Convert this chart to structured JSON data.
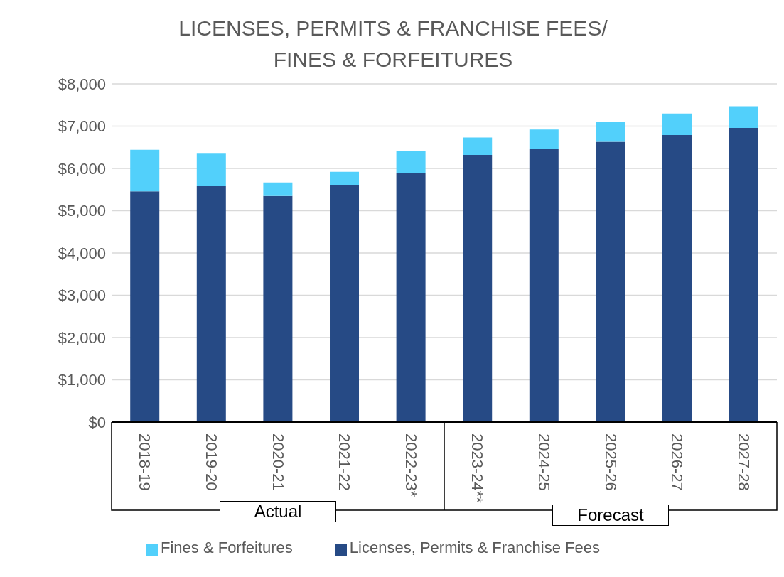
{
  "chart_data": {
    "type": "bar",
    "title": "LICENSES, PERMITS & FRANCHISE FEES/ FINES & FORFEITURES",
    "categories": [
      "2018-19",
      "2019-20",
      "2020-21",
      "2021-22",
      "2022-23*",
      "2023-24**",
      "2024-25",
      "2025-26",
      "2026-27",
      "2027-28"
    ],
    "series": [
      {
        "name": "Licenses, Permits & Franchise Fees",
        "color": "#264a85",
        "values": [
          5460,
          5580,
          5350,
          5610,
          5900,
          6320,
          6470,
          6630,
          6790,
          6960
        ]
      },
      {
        "name": "Fines & Forfeitures",
        "color": "#52d0fb",
        "values": [
          980,
          770,
          320,
          310,
          510,
          410,
          450,
          480,
          510,
          510
        ]
      }
    ],
    "stacked": true,
    "ylim": [
      0,
      8000
    ],
    "yticks": [
      {
        "value": 0,
        "label": "$0"
      },
      {
        "value": 1000,
        "label": "$1,000"
      },
      {
        "value": 2000,
        "label": "$2,000"
      },
      {
        "value": 3000,
        "label": "$3,000"
      },
      {
        "value": 4000,
        "label": "$4,000"
      },
      {
        "value": 5000,
        "label": "$5,000"
      },
      {
        "value": 6000,
        "label": "$6,000"
      },
      {
        "value": 7000,
        "label": "$7,000"
      },
      {
        "value": 8000,
        "label": "$8,000"
      }
    ],
    "grid": "y",
    "legend": "bottom",
    "annotations": [
      "Actual",
      "Forecast"
    ]
  }
}
